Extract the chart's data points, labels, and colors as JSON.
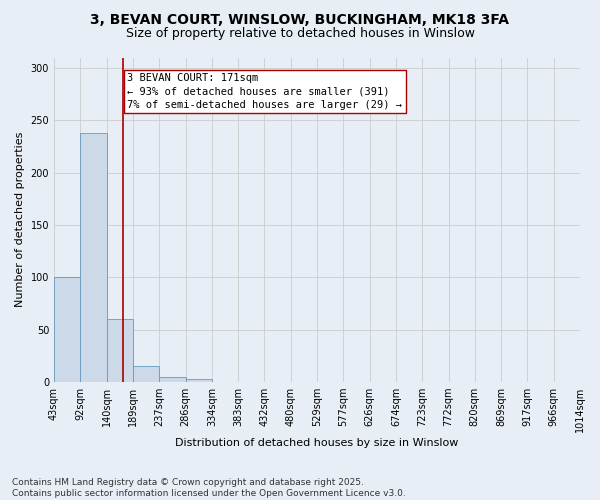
{
  "title_line1": "3, BEVAN COURT, WINSLOW, BUCKINGHAM, MK18 3FA",
  "title_line2": "Size of property relative to detached houses in Winslow",
  "xlabel": "Distribution of detached houses by size in Winslow",
  "ylabel": "Number of detached properties",
  "footer_line1": "Contains HM Land Registry data © Crown copyright and database right 2025.",
  "footer_line2": "Contains public sector information licensed under the Open Government Licence v3.0.",
  "bin_labels": [
    "43sqm",
    "92sqm",
    "140sqm",
    "189sqm",
    "237sqm",
    "286sqm",
    "334sqm",
    "383sqm",
    "432sqm",
    "480sqm",
    "529sqm",
    "577sqm",
    "626sqm",
    "674sqm",
    "723sqm",
    "772sqm",
    "820sqm",
    "869sqm",
    "917sqm",
    "966sqm",
    "1014sqm"
  ],
  "bar_values": [
    100,
    238,
    60,
    15,
    5,
    3,
    0,
    0,
    0,
    0,
    0,
    0,
    0,
    0,
    0,
    0,
    0,
    0,
    0,
    0
  ],
  "bar_color": "#ccd9e8",
  "bar_edge_color": "#6699bb",
  "grid_color": "#cccccc",
  "background_color": "#e8eef5",
  "vline_color": "#aa0000",
  "annotation_text": "3 BEVAN COURT: 171sqm\n← 93% of detached houses are smaller (391)\n7% of semi-detached houses are larger (29) →",
  "ylim": [
    0,
    310
  ],
  "yticks": [
    0,
    50,
    100,
    150,
    200,
    250,
    300
  ],
  "title_fontsize": 10,
  "subtitle_fontsize": 9,
  "axis_label_fontsize": 8,
  "tick_fontsize": 7,
  "annotation_fontsize": 7.5,
  "footer_fontsize": 6.5
}
